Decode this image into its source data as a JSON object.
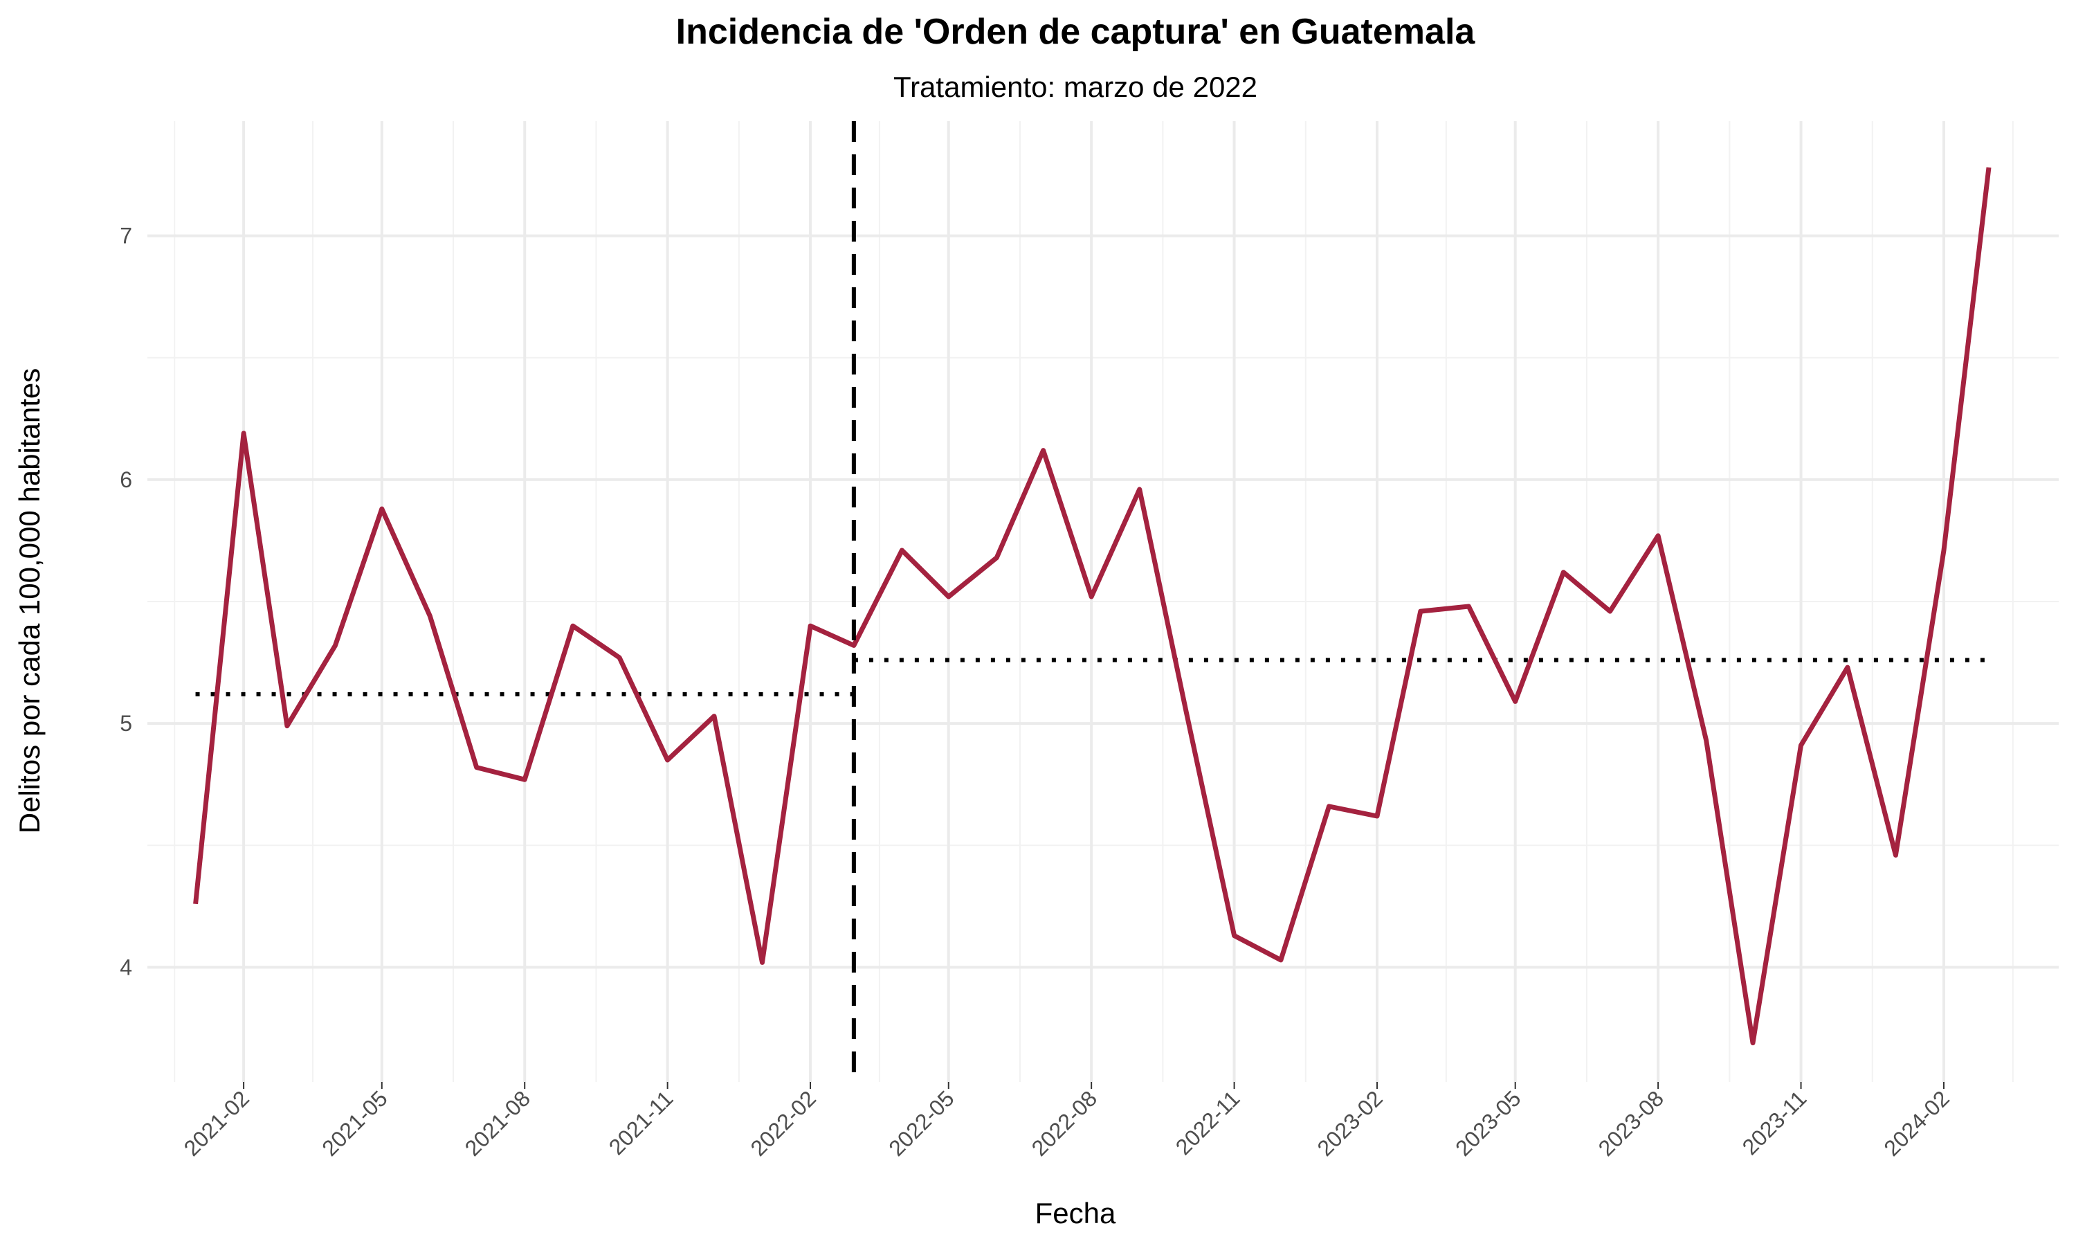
{
  "chart_data": {
    "type": "line",
    "title": "Incidencia de 'Orden de captura' en Guatemala",
    "subtitle": "Tratamiento: marzo de 2022",
    "xlabel": "Fecha",
    "ylabel": "Delitos por cada 100,000 habitantes",
    "x_ticks": [
      "2021-02",
      "2021-05",
      "2021-08",
      "2021-11",
      "2022-02",
      "2022-05",
      "2022-08",
      "2022-11",
      "2023-02",
      "2023-05",
      "2023-08",
      "2023-11",
      "2024-02"
    ],
    "y_ticks": [
      4,
      5,
      6,
      7
    ],
    "ylim": [
      3.53,
      7.47
    ],
    "xlim": [
      "2020-12-01",
      "2024-04-15"
    ],
    "grid": true,
    "series": [
      {
        "color": "#a4223f",
        "x": [
          "2021-01",
          "2021-02",
          "2021-03",
          "2021-04",
          "2021-05",
          "2021-06",
          "2021-07",
          "2021-08",
          "2021-09",
          "2021-10",
          "2021-11",
          "2021-12",
          "2022-01",
          "2022-02",
          "2022-03",
          "2022-04",
          "2022-05",
          "2022-06",
          "2022-07",
          "2022-08",
          "2022-09",
          "2022-10",
          "2022-11",
          "2022-12",
          "2023-01",
          "2023-02",
          "2023-03",
          "2023-04",
          "2023-05",
          "2023-06",
          "2023-07",
          "2023-08",
          "2023-09",
          "2023-10",
          "2023-11",
          "2023-12",
          "2024-01",
          "2024-02",
          "2024-03"
        ],
        "values": [
          4.26,
          6.19,
          4.99,
          5.32,
          5.88,
          5.44,
          4.82,
          4.77,
          5.4,
          5.27,
          4.85,
          5.03,
          4.02,
          5.4,
          5.32,
          5.71,
          5.52,
          5.68,
          6.12,
          5.52,
          5.96,
          5.05,
          4.13,
          4.03,
          4.66,
          4.62,
          5.46,
          5.48,
          5.09,
          5.62,
          5.46,
          5.77,
          4.93,
          3.69,
          4.91,
          5.23,
          4.46,
          5.71,
          7.28
        ]
      }
    ],
    "treatment_line": {
      "x": "2022-03",
      "style": "dashed",
      "color": "#000000"
    },
    "mean_lines": [
      {
        "x_start": "2021-01",
        "x_end": "2022-03",
        "value": 5.12,
        "style": "dotted",
        "color": "#000000"
      },
      {
        "x_start": "2022-03",
        "x_end": "2024-03",
        "value": 5.26,
        "style": "dotted",
        "color": "#000000"
      }
    ]
  }
}
